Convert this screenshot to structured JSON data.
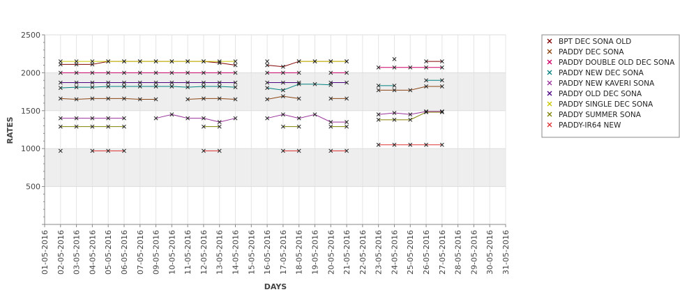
{
  "chart_data": {
    "type": "line",
    "title": "",
    "xlabel": "DAYS",
    "ylabel": "RATES",
    "ylim": [
      0,
      2500
    ],
    "y_ticks": [
      500,
      1000,
      1500,
      2000,
      2500
    ],
    "grid": true,
    "legend_position": "right",
    "categories": [
      "01-05-2016",
      "02-05-2016",
      "03-05-2016",
      "04-05-2016",
      "05-05-2016",
      "06-05-2016",
      "07-05-2016",
      "09-05-2016",
      "10-05-2016",
      "11-05-2016",
      "12-05-2016",
      "13-05-2016",
      "14-05-2016",
      "15-05-2016",
      "16-05-2016",
      "17-05-2016",
      "18-05-2016",
      "19-05-2016",
      "20-05-2016",
      "21-05-2016",
      "22-05-2016",
      "23-05-2016",
      "24-05-2016",
      "25-05-2016",
      "26-05-2016",
      "27-05-2016",
      "28-05-2016",
      "29-05-2016",
      "30-05-2016",
      "31-05-2016"
    ],
    "series": [
      {
        "name": "BPT DEC SONA OLD",
        "color": "#800000",
        "values": [
          null,
          2110,
          2110,
          2110,
          2150,
          2150,
          2150,
          2150,
          2150,
          2150,
          2150,
          2130,
          2100,
          null,
          2100,
          2080,
          2150,
          2150,
          2150,
          2150,
          null,
          null,
          2180,
          null,
          2150,
          2150,
          null,
          null,
          null,
          null
        ]
      },
      {
        "name": "PADDY DEC SONA",
        "color": "#8b4513",
        "values": [
          null,
          1660,
          1650,
          1660,
          1660,
          1660,
          1650,
          1650,
          null,
          1650,
          1660,
          1660,
          1650,
          null,
          1650,
          1690,
          1660,
          null,
          1660,
          1660,
          null,
          1770,
          1770,
          1770,
          1820,
          1820,
          null,
          null,
          null,
          null
        ]
      },
      {
        "name": "PADDY DOUBLE OLD DEC SONA",
        "color": "#cc0066",
        "values": [
          null,
          2000,
          2000,
          2000,
          2000,
          2000,
          2000,
          2000,
          2000,
          2000,
          2000,
          2000,
          2000,
          null,
          2000,
          2000,
          2000,
          null,
          2000,
          2000,
          null,
          2070,
          2070,
          2070,
          2070,
          2070,
          null,
          null,
          null,
          null
        ]
      },
      {
        "name": "PADDY NEW DEC SONA",
        "color": "#008080",
        "values": [
          null,
          1800,
          1810,
          1810,
          1820,
          1820,
          1820,
          1820,
          1820,
          1810,
          1820,
          1820,
          1810,
          null,
          1800,
          1770,
          1850,
          1850,
          1840,
          null,
          null,
          1830,
          1830,
          null,
          1900,
          1900,
          null,
          null,
          null,
          null
        ]
      },
      {
        "name": "PADDY NEW KAVERI SONA",
        "color": "#993399",
        "values": [
          null,
          1400,
          1400,
          1400,
          1400,
          1400,
          null,
          1400,
          1450,
          1400,
          1400,
          1350,
          1400,
          null,
          1400,
          1450,
          1400,
          1450,
          1350,
          1350,
          null,
          1450,
          1470,
          1450,
          1490,
          1490,
          null,
          null,
          null,
          null
        ]
      },
      {
        "name": "PADDY OLD DEC SONA",
        "color": "#4b0082",
        "values": [
          null,
          1870,
          1870,
          1870,
          1870,
          1870,
          1870,
          1870,
          1870,
          1870,
          1870,
          1870,
          1870,
          null,
          1870,
          1870,
          1870,
          null,
          1870,
          1870,
          null,
          null,
          null,
          null,
          null,
          null,
          null,
          null,
          null,
          null
        ]
      },
      {
        "name": "PADDY SINGLE DEC SONA",
        "color": "#c8c800",
        "values": [
          null,
          2150,
          2150,
          2150,
          2150,
          2150,
          2150,
          2150,
          2150,
          2150,
          2150,
          2150,
          2150,
          null,
          2150,
          null,
          2150,
          2150,
          2150,
          2150,
          null,
          null,
          null,
          null,
          null,
          null,
          null,
          null,
          null,
          null
        ]
      },
      {
        "name": "PADDY SUMMER SONA",
        "color": "#808000",
        "values": [
          null,
          1290,
          1290,
          1290,
          1290,
          1290,
          null,
          null,
          null,
          null,
          1290,
          1290,
          null,
          null,
          null,
          1290,
          1290,
          null,
          1290,
          1290,
          null,
          1380,
          1380,
          1380,
          1480,
          1480,
          null,
          null,
          null,
          null
        ]
      },
      {
        "name": "PADDY-IR64 NEW",
        "color": "#dd3333",
        "values": [
          null,
          970,
          null,
          970,
          970,
          970,
          null,
          null,
          null,
          null,
          970,
          970,
          null,
          null,
          null,
          970,
          970,
          null,
          970,
          970,
          null,
          1050,
          1050,
          1050,
          1050,
          1050,
          null,
          null,
          null,
          null
        ]
      }
    ]
  }
}
